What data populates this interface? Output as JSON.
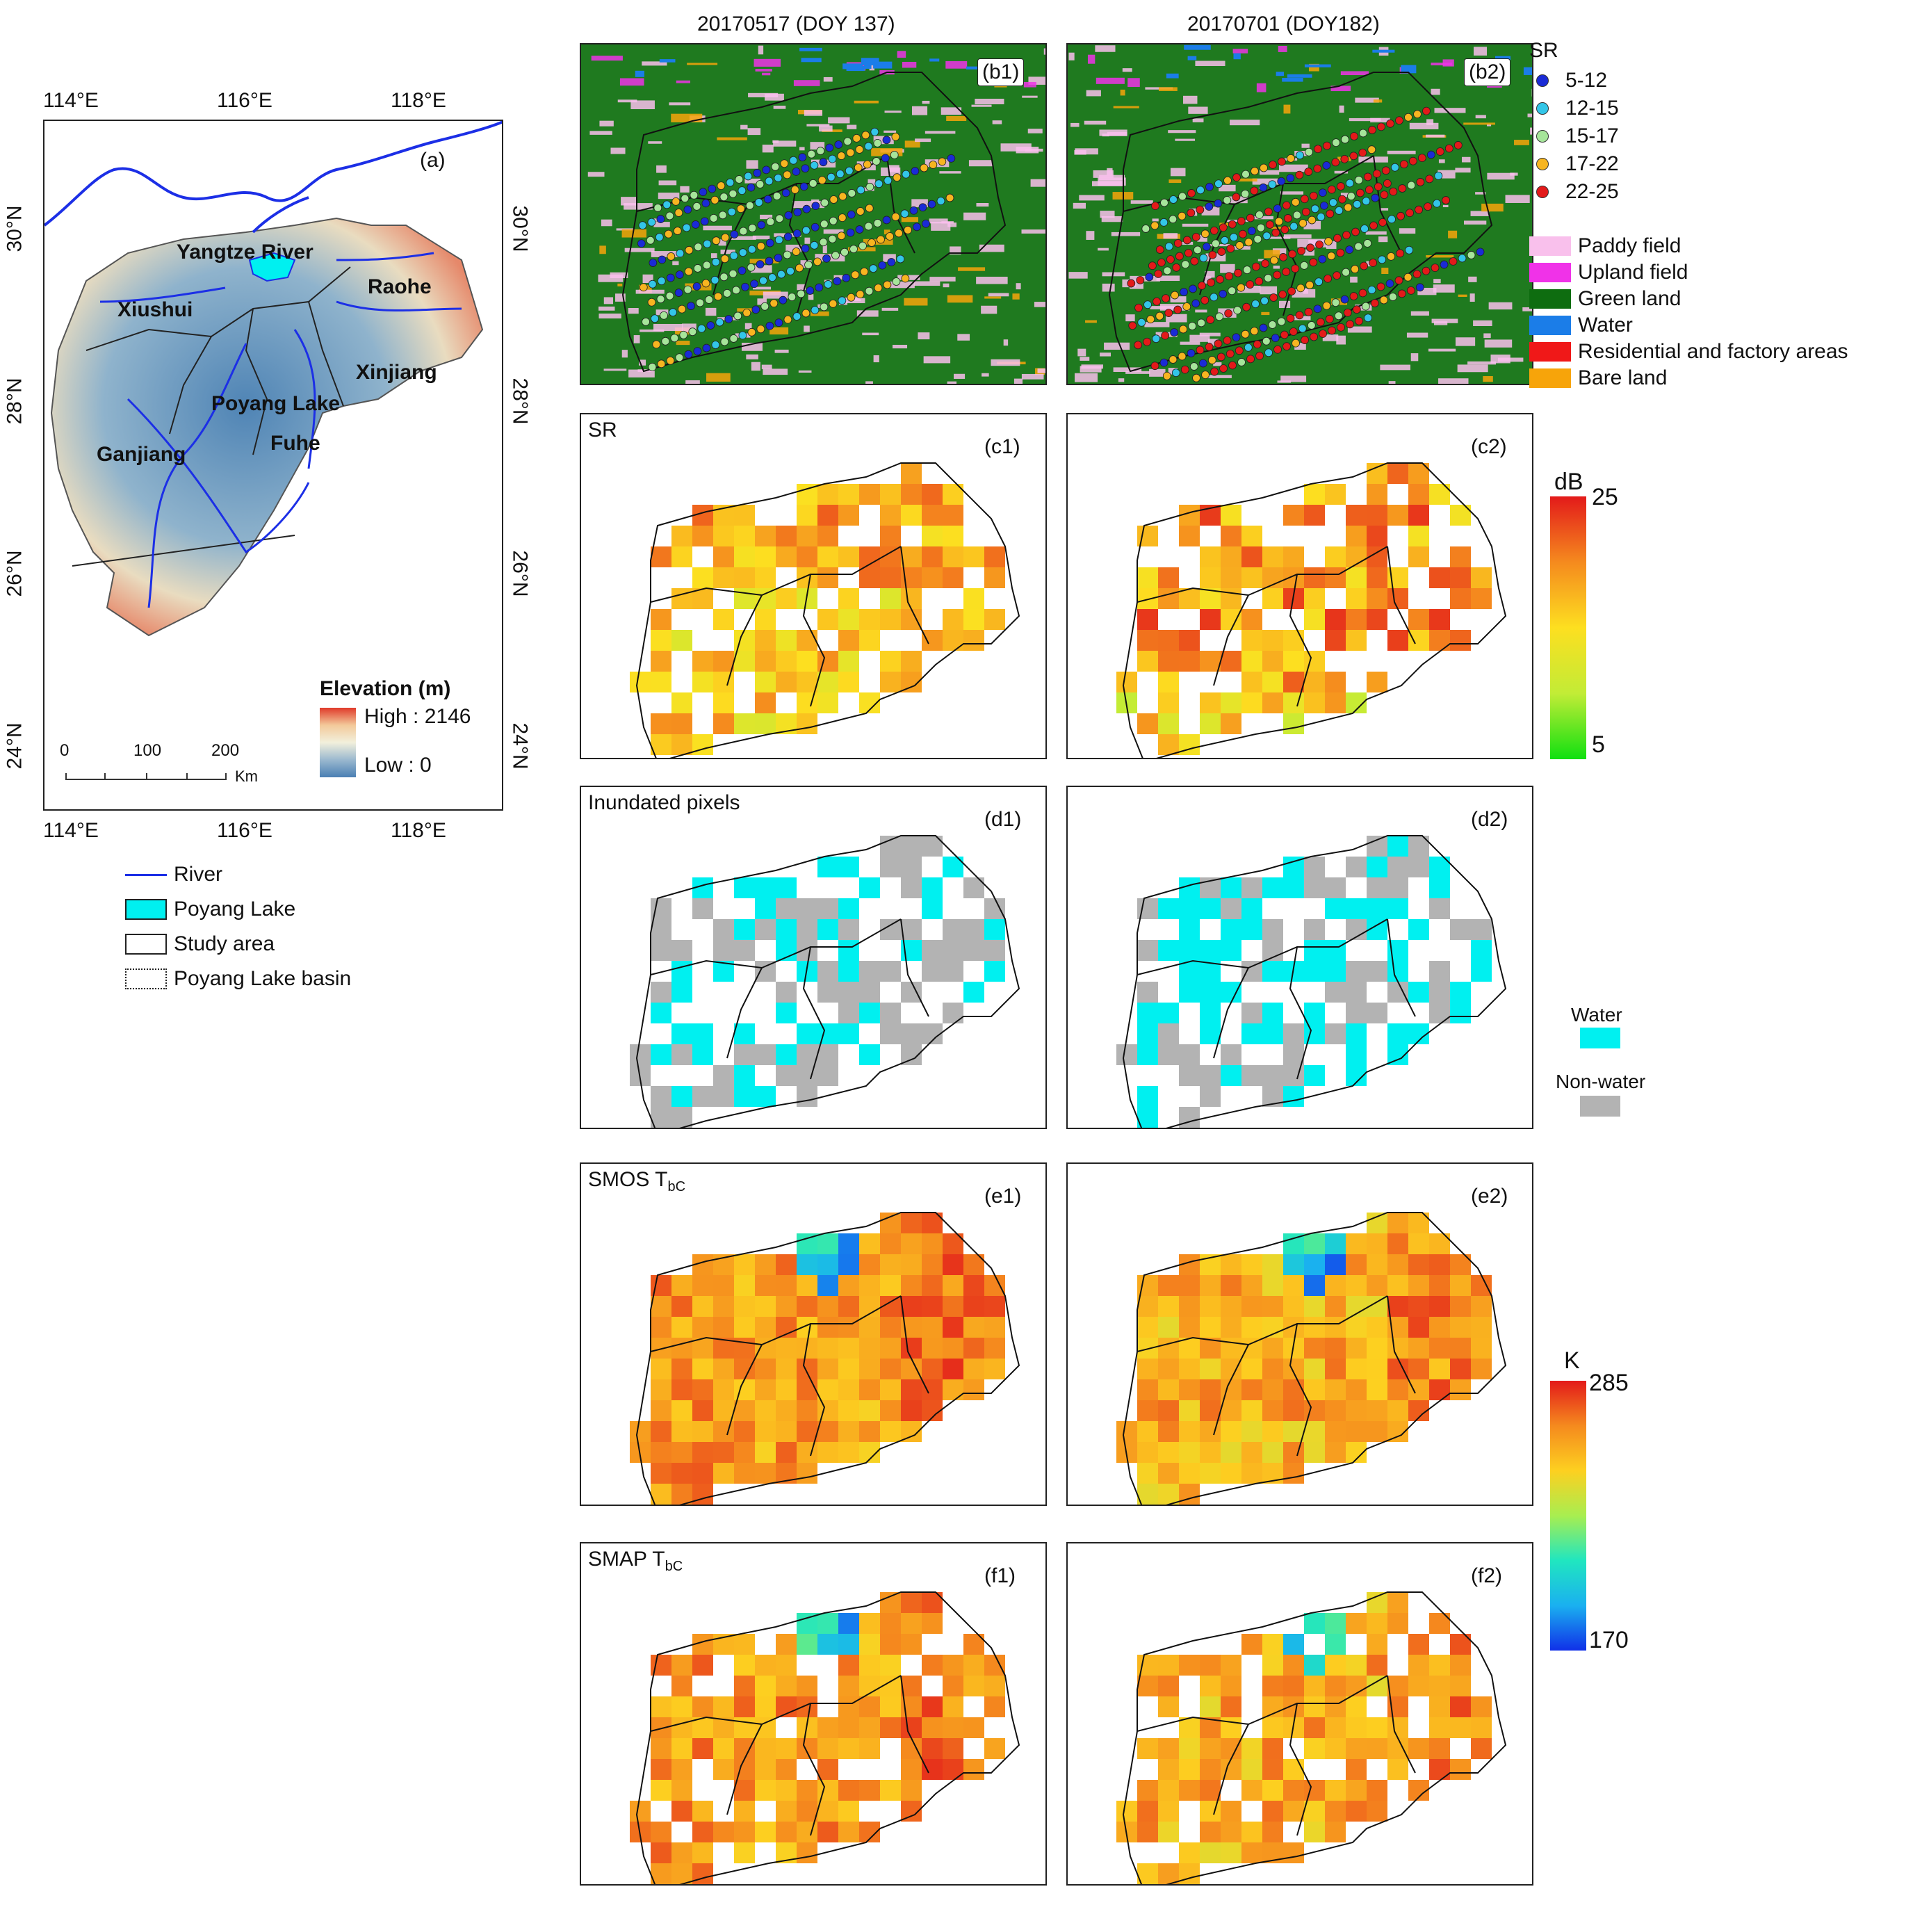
{
  "column_titles": [
    "20170517 (DOY 137)",
    "20170701 (DOY182)"
  ],
  "panel_a": {
    "label": "(a)",
    "top_lon_ticks": [
      "114°E",
      "116°E",
      "118°E"
    ],
    "bottom_lon_ticks": [
      "114°E",
      "116°E",
      "118°E"
    ],
    "left_lat_ticks": [
      "30°N",
      "28°N",
      "26°N",
      "24°N"
    ],
    "right_lat_ticks": [
      "30°N",
      "28°N",
      "26°N",
      "24°N"
    ],
    "place_names": [
      "Yangtze River",
      "Xiushui",
      "Raohe",
      "Xinjiang",
      "Poyang Lake",
      "Fuhe",
      "Ganjiang"
    ],
    "elevation_legend": {
      "title": "Elevation (m)",
      "high": "High : 2146",
      "low": "Low : 0"
    },
    "scale_bar": {
      "ticks": [
        "0",
        "100",
        "200"
      ],
      "unit": "Km"
    }
  },
  "map_legend": [
    {
      "label": "River",
      "symbol": "line",
      "color": "#1c2fe6"
    },
    {
      "label": "Poyang Lake",
      "symbol": "fill",
      "color": "#00f0f0"
    },
    {
      "label": "Study area",
      "symbol": "box-solid",
      "color": "#222222"
    },
    {
      "label": "Poyang Lake basin",
      "symbol": "box-dotted",
      "color": "#222222"
    }
  ],
  "sr_legend": {
    "title": "SR",
    "classes": [
      {
        "label": "5-12",
        "color": "#1a2bd6"
      },
      {
        "label": "12-15",
        "color": "#33c6e8"
      },
      {
        "label": "15-17",
        "color": "#a6e59a"
      },
      {
        "label": "17-22",
        "color": "#f7b520"
      },
      {
        "label": "22-25",
        "color": "#e31a1a"
      }
    ]
  },
  "landcover_legend": [
    {
      "label": "Paddy field",
      "color": "#f9c0ec"
    },
    {
      "label": "Upland field",
      "color": "#f032e8"
    },
    {
      "label": "Green land",
      "color": "#0e6d10"
    },
    {
      "label": "Water",
      "color": "#1b7de8"
    },
    {
      "label": "Residential and factory areas",
      "color": "#f01818"
    },
    {
      "label": "Bare land",
      "color": "#f7a40a"
    }
  ],
  "panels": {
    "b1": {
      "label": "(b1)"
    },
    "b2": {
      "label": "(b2)"
    },
    "c1": {
      "label": "(c1)",
      "title": "SR"
    },
    "c2": {
      "label": "(c2)"
    },
    "d1": {
      "label": "(d1)",
      "title": "Inundated pixels"
    },
    "d2": {
      "label": "(d2)"
    },
    "e1": {
      "label": "(e1)",
      "title": "SMOS T",
      "title_sub": "bC"
    },
    "e2": {
      "label": "(e2)"
    },
    "f1": {
      "label": "(f1)",
      "title": "SMAP T",
      "title_sub": "bC"
    },
    "f2": {
      "label": "(f2)"
    }
  },
  "db_colorbar": {
    "unit": "dB",
    "max": "25",
    "min": "5"
  },
  "water_legend": [
    {
      "label": "Water",
      "color": "#00f0f0"
    },
    {
      "label": "Non-water",
      "color": "#b3b3b3"
    }
  ],
  "k_colorbar": {
    "unit": "K",
    "max": "285",
    "min": "170"
  }
}
